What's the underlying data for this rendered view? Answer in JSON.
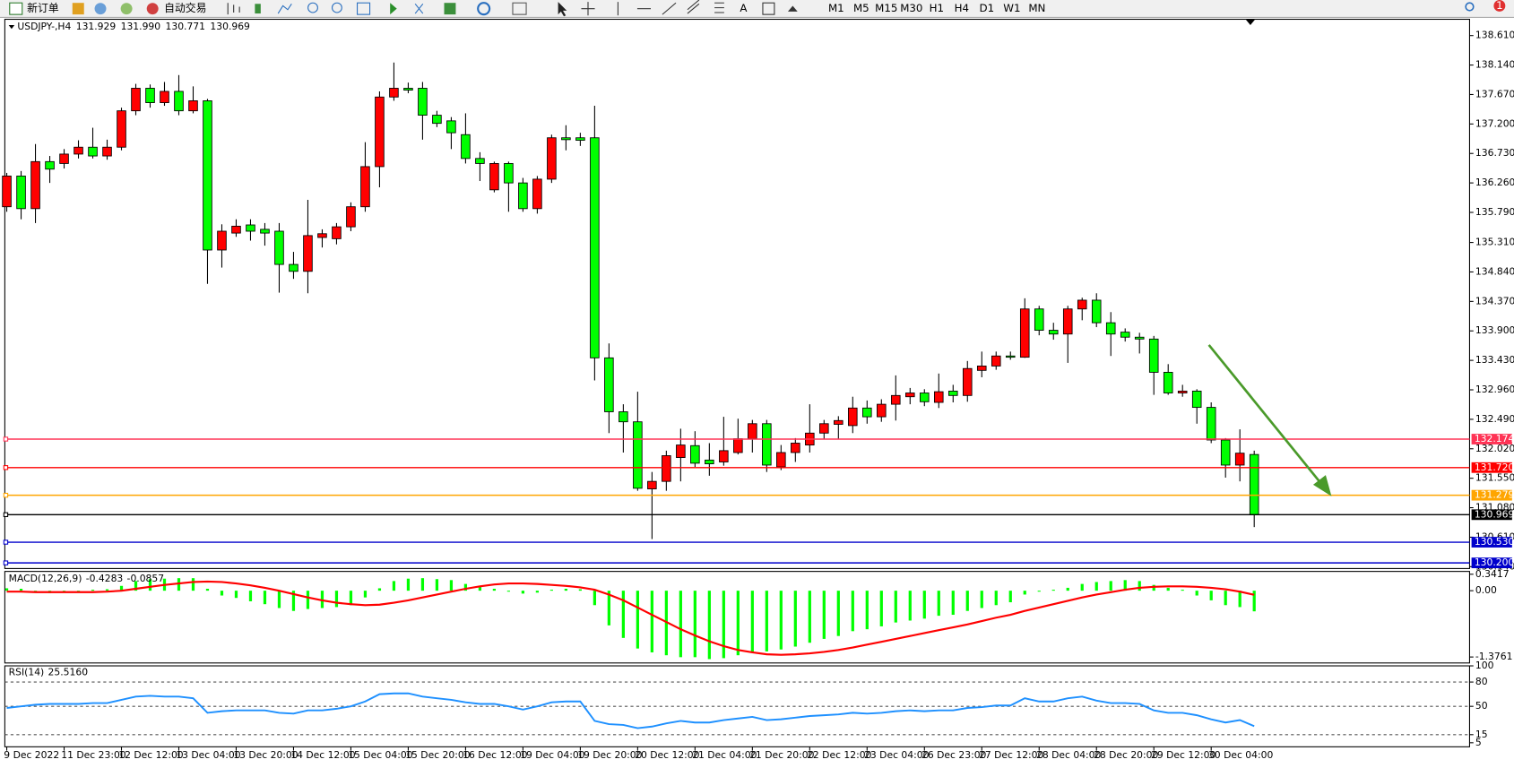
{
  "toolbar": {
    "new_order": "新订单",
    "auto_trading": "自动交易",
    "text_tool": "A",
    "timeframes": [
      "M1",
      "M5",
      "M15",
      "M30",
      "H1",
      "H4",
      "D1",
      "W1",
      "MN"
    ],
    "notifications": 1
  },
  "chart_data": [
    {
      "type": "candlestick",
      "title": "USDJPY-,H4",
      "quote": [
        131.929,
        {
          "value": 131.99,
          "label": "131.990"
        },
        130.771,
        130.969
      ],
      "categories": [
        "9 Dec 2022",
        null,
        null,
        null,
        "11 Dec 23:00",
        null,
        null,
        null,
        "12 Dec 12:00",
        null,
        null,
        null,
        "13 Dec 04:00",
        null,
        null,
        null,
        "13 Dec 20:00",
        null,
        null,
        null,
        "14 Dec 12:00",
        null,
        null,
        null,
        "15 Dec 04:00",
        null,
        null,
        null,
        "15 Dec 20:00",
        null,
        null,
        null,
        "16 Dec 12:00",
        null,
        null,
        null,
        "19 Dec 04:00",
        null,
        null,
        null,
        "19 Dec 20:00",
        null,
        null,
        null,
        "20 Dec 12:00",
        null,
        null,
        null,
        "21 Dec 04:00",
        null,
        null,
        null,
        "21 Dec 20:00",
        null,
        null,
        null,
        "22 Dec 12:00",
        null,
        null,
        null,
        "23 Dec 04:00",
        null,
        null,
        null,
        "26 Dec 23:00",
        null,
        null,
        null,
        "27 Dec 12:00",
        null,
        null,
        null,
        "28 Dec 04:00",
        null,
        null,
        null,
        "28 Dec 20:00",
        null,
        null,
        null,
        "29 Dec 12:00",
        null,
        null,
        null,
        "30 Dec 04:00",
        null,
        null,
        null
      ],
      "open": [
        135.88,
        136.37,
        135.85,
        136.6,
        136.57,
        136.72,
        136.83,
        136.69,
        136.83,
        137.41,
        137.77,
        137.54,
        137.72,
        137.41,
        137.57,
        135.19,
        135.46,
        135.59,
        135.52,
        135.49,
        134.96,
        134.85,
        135.39,
        135.37,
        135.56,
        135.88,
        136.52,
        137.63,
        137.77,
        137.77,
        137.34,
        137.25,
        137.03,
        136.65,
        136.15,
        136.57,
        136.26,
        135.85,
        136.32,
        136.98,
        136.98,
        136.98,
        133.47,
        132.61,
        132.45,
        131.38,
        131.5,
        131.88,
        132.07,
        131.84,
        131.81,
        131.96,
        132.18,
        132.42,
        131.73,
        131.96,
        132.08,
        132.27,
        132.41,
        132.39,
        132.67,
        132.53,
        132.73,
        132.85,
        132.91,
        132.76,
        132.94,
        132.87,
        133.27,
        133.34,
        133.5,
        133.48,
        134.25,
        133.91,
        133.85,
        134.25,
        134.39,
        134.03,
        133.88,
        133.8,
        133.77,
        133.24,
        132.91,
        132.94,
        132.68,
        132.16,
        131.76,
        131.929
      ],
      "high": [
        136.42,
        136.45,
        136.88,
        136.69,
        136.8,
        136.94,
        137.14,
        136.95,
        137.46,
        137.84,
        137.83,
        137.87,
        137.98,
        137.8,
        137.6,
        135.6,
        135.68,
        135.68,
        135.62,
        135.62,
        135.16,
        135.99,
        135.52,
        135.62,
        135.95,
        136.91,
        137.72,
        138.18,
        137.86,
        137.87,
        137.41,
        137.31,
        137.37,
        136.75,
        136.6,
        136.6,
        136.34,
        136.37,
        137.03,
        137.18,
        137.06,
        137.49,
        133.7,
        132.73,
        132.93,
        131.65,
        131.99,
        132.34,
        132.3,
        132.11,
        132.53,
        132.5,
        132.48,
        132.48,
        132.08,
        132.19,
        132.73,
        132.48,
        132.54,
        132.85,
        132.79,
        132.81,
        133.19,
        132.99,
        132.97,
        133.22,
        133.04,
        133.42,
        133.57,
        133.57,
        133.57,
        134.42,
        134.3,
        134.03,
        134.3,
        134.43,
        134.5,
        134.2,
        133.94,
        133.87,
        133.82,
        133.37,
        133.04,
        132.97,
        132.76,
        132.19,
        132.33,
        131.99
      ],
      "low": [
        135.8,
        135.68,
        135.62,
        136.26,
        136.49,
        136.65,
        136.65,
        136.63,
        136.78,
        137.34,
        137.46,
        137.49,
        137.34,
        137.37,
        134.65,
        134.91,
        135.4,
        135.34,
        135.26,
        134.51,
        134.73,
        134.5,
        135.23,
        135.28,
        135.49,
        135.8,
        136.19,
        137.57,
        137.69,
        136.95,
        137.15,
        136.8,
        136.57,
        136.29,
        136.11,
        135.8,
        135.8,
        135.77,
        136.26,
        136.78,
        136.85,
        133.11,
        132.27,
        131.96,
        131.35,
        130.58,
        131.35,
        131.5,
        131.73,
        131.59,
        131.75,
        131.93,
        131.96,
        131.65,
        131.68,
        131.81,
        131.96,
        132.18,
        132.18,
        132.27,
        132.42,
        132.45,
        132.47,
        132.73,
        132.7,
        132.67,
        132.76,
        132.77,
        133.16,
        133.28,
        133.44,
        133.47,
        133.83,
        133.76,
        133.39,
        134.07,
        133.96,
        133.5,
        133.73,
        133.54,
        132.88,
        132.88,
        132.85,
        132.42,
        132.11,
        131.56,
        131.5,
        130.771
      ],
      "close": [
        136.37,
        135.85,
        136.6,
        136.48,
        136.72,
        136.83,
        136.69,
        136.83,
        137.41,
        137.77,
        137.54,
        137.72,
        137.41,
        137.57,
        135.19,
        135.49,
        135.57,
        135.49,
        135.46,
        134.96,
        134.85,
        135.42,
        135.45,
        135.56,
        135.88,
        136.52,
        137.63,
        137.77,
        137.74,
        137.34,
        137.21,
        137.06,
        136.65,
        136.57,
        136.57,
        136.26,
        135.85,
        136.32,
        136.98,
        136.95,
        136.94,
        133.47,
        132.61,
        132.45,
        131.39,
        131.5,
        131.91,
        132.08,
        131.79,
        131.78,
        131.99,
        132.18,
        132.42,
        131.76,
        131.96,
        132.11,
        132.27,
        132.42,
        132.47,
        132.67,
        132.53,
        132.73,
        132.87,
        132.91,
        132.77,
        132.93,
        132.87,
        133.3,
        133.34,
        133.5,
        133.48,
        134.25,
        133.91,
        133.85,
        134.25,
        134.39,
        134.03,
        133.85,
        133.8,
        133.77,
        133.24,
        132.91,
        132.94,
        132.68,
        132.16,
        131.76,
        131.95,
        130.969
      ],
      "up_color": "#ff0000",
      "down_color": "#00ff00",
      "ylim": [
        130.11,
        138.87
      ],
      "yticks": [
        {
          "value": 138.61,
          "label": "138.610"
        },
        {
          "value": 138.14,
          "label": "138.140"
        },
        {
          "value": 137.67,
          "label": "137.670"
        },
        {
          "value": 137.2,
          "label": "137.200"
        },
        {
          "value": 136.73,
          "label": "136.730"
        },
        {
          "value": 136.26,
          "label": "136.260"
        },
        {
          "value": 135.79,
          "label": "135.790"
        },
        {
          "value": 135.31,
          "label": "135.310"
        },
        {
          "value": 134.84,
          "label": "134.840"
        },
        {
          "value": 134.37,
          "label": "134.370"
        },
        {
          "value": 133.9,
          "label": "133.900"
        },
        {
          "value": 133.43,
          "label": "133.430"
        },
        {
          "value": 132.96,
          "label": "132.960"
        },
        {
          "value": 132.49,
          "label": "132.490"
        },
        {
          "value": 132.02,
          "label": "132.020"
        },
        {
          "value": 131.55,
          "label": "131.550"
        },
        {
          "value": 131.08,
          "label": "131.080"
        },
        {
          "value": 130.61,
          "label": "130.610"
        },
        {
          "value": 130.14,
          "label": "130.140"
        }
      ],
      "levels": [
        {
          "value": 132.174,
          "color": "#ff3355"
        },
        {
          "value": 131.72,
          "label": "131.720",
          "color": "#ff0000"
        },
        {
          "value": 131.279,
          "color": "#ffa500"
        },
        {
          "value": 130.969,
          "color": "#000000"
        },
        {
          "value": 130.53,
          "label": "130.530",
          "color": "#0000cc"
        },
        {
          "value": 130.2,
          "label": "130.200",
          "color": "#0000cc"
        }
      ]
    },
    {
      "type": "macd",
      "title": "MACD(12,26,9)",
      "histogram": {
        "color": "#00ff00",
        "values": [
          0.05,
          0.04,
          -0.02,
          -0.05,
          -0.04,
          -0.02,
          0.02,
          0.03,
          0.1,
          0.2,
          0.24,
          0.25,
          0.26,
          0.26,
          0.04,
          -0.1,
          -0.15,
          -0.22,
          -0.28,
          -0.36,
          -0.42,
          -0.38,
          -0.36,
          -0.34,
          -0.3,
          -0.14,
          0.05,
          0.2,
          0.25,
          0.26,
          0.24,
          0.22,
          0.14,
          0.08,
          0.04,
          -0.02,
          -0.06,
          -0.04,
          0.02,
          0.04,
          0.03,
          -0.3,
          -0.72,
          -0.98,
          -1.2,
          -1.28,
          -1.34,
          -1.38,
          -1.38,
          -1.42,
          -1.4,
          -1.34,
          -1.28,
          -1.26,
          -1.22,
          -1.16,
          -1.08,
          -1.0,
          -0.94,
          -0.84,
          -0.8,
          -0.74,
          -0.66,
          -0.62,
          -0.58,
          -0.52,
          -0.5,
          -0.42,
          -0.36,
          -0.3,
          -0.24,
          -0.08,
          -0.02,
          0.02,
          0.06,
          0.14,
          0.18,
          0.2,
          0.22,
          0.2,
          0.12,
          0.06,
          0.02,
          -0.1,
          -0.2,
          -0.3,
          -0.34,
          -0.4283
        ]
      },
      "signal": {
        "color": "#ff0000",
        "values": [
          -0.02,
          -0.02,
          -0.03,
          -0.03,
          -0.03,
          -0.03,
          -0.03,
          -0.02,
          0.0,
          0.04,
          0.08,
          0.12,
          0.15,
          0.18,
          0.19,
          0.18,
          0.15,
          0.11,
          0.06,
          0.0,
          -0.07,
          -0.14,
          -0.2,
          -0.25,
          -0.28,
          -0.3,
          -0.29,
          -0.25,
          -0.2,
          -0.14,
          -0.08,
          -0.02,
          0.04,
          0.09,
          0.13,
          0.15,
          0.15,
          0.14,
          0.12,
          0.1,
          0.07,
          0.02,
          -0.08,
          -0.2,
          -0.35,
          -0.5,
          -0.65,
          -0.8,
          -0.93,
          -1.05,
          -1.15,
          -1.23,
          -1.28,
          -1.32,
          -1.33,
          -1.32,
          -1.3,
          -1.27,
          -1.23,
          -1.18,
          -1.12,
          -1.06,
          -1.0,
          -0.94,
          -0.88,
          -0.82,
          -0.76,
          -0.7,
          -0.63,
          -0.56,
          -0.5,
          -0.42,
          -0.35,
          -0.28,
          -0.21,
          -0.14,
          -0.08,
          -0.03,
          0.02,
          0.06,
          0.08,
          0.09,
          0.09,
          0.08,
          0.06,
          0.03,
          -0.02,
          -0.0857
        ]
      },
      "ylim": [
        -1.5,
        0.4
      ],
      "yticks": [
        0.3417,
        {
          "value": 0,
          "label": "0.00"
        },
        -1.3761
      ]
    },
    {
      "type": "rsi",
      "title": "RSI(14)",
      "reading": {
        "value": 25.516,
        "label": "25.5160"
      },
      "color": "#1e90ff",
      "values": [
        48,
        50,
        52,
        53,
        53,
        53,
        54,
        54,
        58,
        62,
        63,
        62,
        62,
        60,
        42,
        44,
        45,
        45,
        45,
        42,
        41,
        45,
        45,
        47,
        50,
        56,
        65,
        66,
        66,
        62,
        60,
        58,
        55,
        53,
        53,
        50,
        46,
        50,
        55,
        56,
        56,
        32,
        28,
        27,
        23,
        25,
        29,
        32,
        30,
        30,
        33,
        35,
        37,
        33,
        34,
        36,
        38,
        39,
        40,
        42,
        41,
        42,
        44,
        45,
        44,
        45,
        45,
        48,
        49,
        51,
        51,
        60,
        56,
        56,
        60,
        62,
        57,
        54,
        54,
        53,
        45,
        42,
        42,
        39,
        34,
        30,
        33,
        25.516
      ],
      "ylim": [
        0,
        100
      ],
      "yticks": [
        100,
        80,
        50,
        15,
        5
      ],
      "levels": [
        80,
        50,
        15
      ]
    }
  ]
}
